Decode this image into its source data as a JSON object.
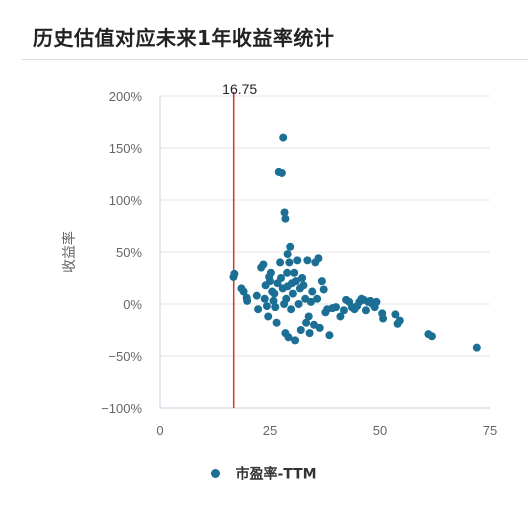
{
  "title": "历史估值对应未来1年收益率统计",
  "colors": {
    "point": "#1b6f94",
    "marker": "#d9322b",
    "grid": "#e6e6e6"
  },
  "chart_data": {
    "type": "scatter",
    "title": "历史估值对应未来1年收益率统计",
    "xlabel": "",
    "ylabel": "收益率",
    "xlim": [
      0,
      75
    ],
    "ylim": [
      -100,
      200
    ],
    "x_ticks": [
      "0",
      "25",
      "50",
      "75"
    ],
    "y_ticks": [
      "200%",
      "150%",
      "100%",
      "50%",
      "0%",
      "−50%",
      "−100%"
    ],
    "grid": true,
    "legend": "bottom-center",
    "marker_line": {
      "x": 16.75,
      "label": "16.75"
    },
    "series": [
      {
        "name": "市盈率-TTM",
        "points": [
          [
            16.7,
            26
          ],
          [
            16.9,
            29
          ],
          [
            18.5,
            15
          ],
          [
            19.0,
            12
          ],
          [
            19.7,
            6
          ],
          [
            19.8,
            3
          ],
          [
            22.0,
            8
          ],
          [
            22.3,
            -5
          ],
          [
            23.0,
            35
          ],
          [
            23.5,
            38
          ],
          [
            23.8,
            5
          ],
          [
            24.0,
            18
          ],
          [
            24.3,
            -2
          ],
          [
            24.6,
            -12
          ],
          [
            24.8,
            26
          ],
          [
            25.0,
            22
          ],
          [
            25.2,
            30
          ],
          [
            25.5,
            12
          ],
          [
            25.8,
            3
          ],
          [
            26.0,
            10
          ],
          [
            26.2,
            -3
          ],
          [
            26.5,
            -18
          ],
          [
            26.7,
            20
          ],
          [
            27.0,
            127
          ],
          [
            27.3,
            40
          ],
          [
            27.5,
            25
          ],
          [
            27.7,
            126
          ],
          [
            27.9,
            15
          ],
          [
            28.0,
            160
          ],
          [
            28.2,
            0
          ],
          [
            28.3,
            88
          ],
          [
            28.5,
            82
          ],
          [
            28.5,
            -28
          ],
          [
            28.7,
            5
          ],
          [
            28.9,
            30
          ],
          [
            29.0,
            48
          ],
          [
            29.0,
            17
          ],
          [
            29.2,
            -32
          ],
          [
            29.4,
            40
          ],
          [
            29.6,
            55
          ],
          [
            29.8,
            -5
          ],
          [
            30.0,
            20
          ],
          [
            30.2,
            10
          ],
          [
            30.5,
            30
          ],
          [
            30.7,
            -35
          ],
          [
            30.9,
            22
          ],
          [
            31.2,
            42
          ],
          [
            31.5,
            0
          ],
          [
            31.8,
            15
          ],
          [
            32.0,
            -25
          ],
          [
            32.3,
            25
          ],
          [
            32.6,
            18
          ],
          [
            33.0,
            5
          ],
          [
            33.2,
            -18
          ],
          [
            33.5,
            42
          ],
          [
            33.8,
            -12
          ],
          [
            34.0,
            -28
          ],
          [
            34.3,
            2
          ],
          [
            34.6,
            12
          ],
          [
            35.0,
            -20
          ],
          [
            35.3,
            40
          ],
          [
            35.7,
            5
          ],
          [
            36.0,
            44
          ],
          [
            36.3,
            -23
          ],
          [
            36.8,
            22
          ],
          [
            37.2,
            14
          ],
          [
            37.6,
            -8
          ],
          [
            38.0,
            -5
          ],
          [
            38.5,
            -30
          ],
          [
            39.2,
            -4
          ],
          [
            40.0,
            -3
          ],
          [
            41.0,
            -12
          ],
          [
            41.8,
            -6
          ],
          [
            42.3,
            4
          ],
          [
            43.0,
            2
          ],
          [
            43.6,
            -3
          ],
          [
            44.2,
            -5
          ],
          [
            44.8,
            -2
          ],
          [
            45.3,
            2
          ],
          [
            45.8,
            5
          ],
          [
            46.3,
            4
          ],
          [
            46.8,
            -6
          ],
          [
            47.3,
            2
          ],
          [
            47.8,
            3
          ],
          [
            48.3,
            0
          ],
          [
            48.8,
            -3
          ],
          [
            49.2,
            2
          ],
          [
            50.5,
            -9
          ],
          [
            50.7,
            -14
          ],
          [
            53.5,
            -10
          ],
          [
            54.0,
            -19
          ],
          [
            54.5,
            -16
          ],
          [
            61.0,
            -29
          ],
          [
            61.8,
            -31
          ],
          [
            72.0,
            -42
          ]
        ]
      }
    ]
  }
}
